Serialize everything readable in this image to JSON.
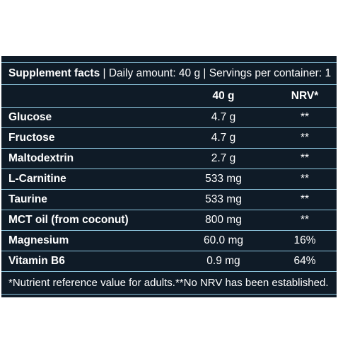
{
  "header": {
    "title": "Supplement facts",
    "separator": "|",
    "daily": "Daily amount: 40 g",
    "servings": "Servings per container: 1"
  },
  "columns": {
    "amount": "40 g",
    "nrv": "NRV*"
  },
  "rows": [
    [
      "Glucose",
      "4.7 g",
      "**"
    ],
    [
      "Fructose",
      "4.7 g",
      "**"
    ],
    [
      "Maltodextrin",
      "2.7 g",
      "**"
    ],
    [
      "L-Carnitine",
      "533 mg",
      "**"
    ],
    [
      "Taurine",
      "533 mg",
      "**"
    ],
    [
      "MCT oil (from coconut)",
      "800 mg",
      "**"
    ],
    [
      "Magnesium",
      "60.0 mg",
      "16%"
    ],
    [
      "Vitamin B6",
      "0.9 mg",
      "64%"
    ]
  ],
  "footnote": "*Nutrient reference value for adults.**No NRV has been established."
}
